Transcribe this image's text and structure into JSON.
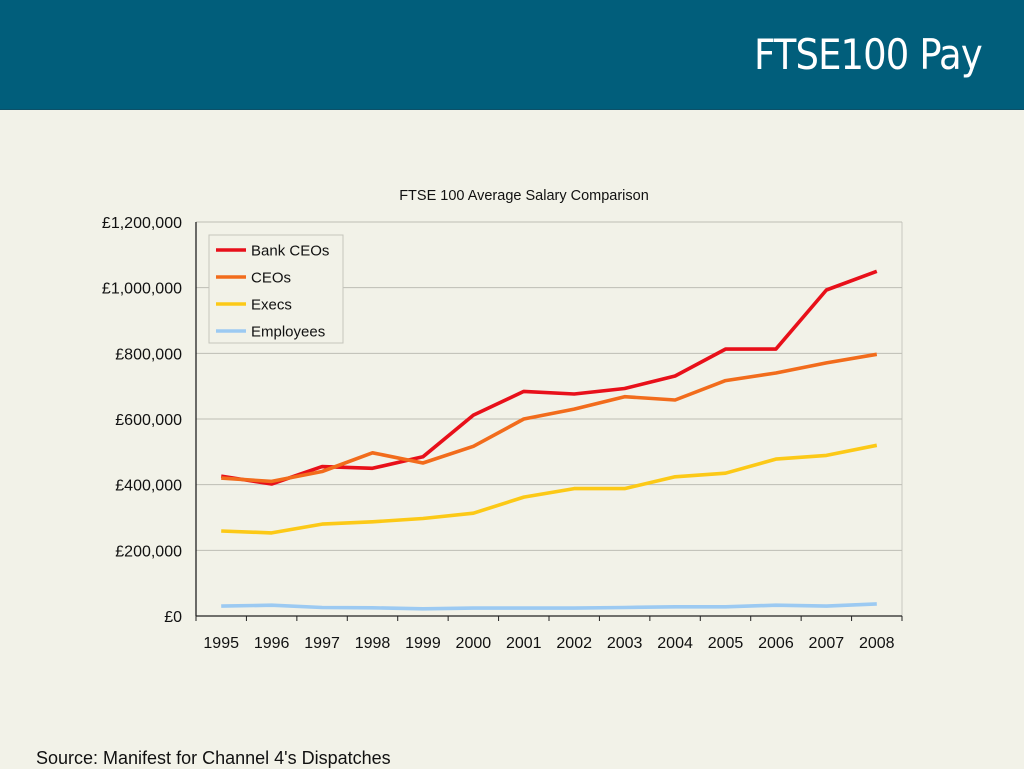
{
  "slide": {
    "title": "FTSE100 Pay",
    "source": "Source: Manifest for Channel 4's Dispatches",
    "colors": {
      "header_bg": "#015e7b",
      "page_bg": "#f2f2e8"
    }
  },
  "chart_data": {
    "type": "line",
    "title": "FTSE 100 Average Salary Comparison",
    "xlabel": "",
    "ylabel": "",
    "categories": [
      "1995",
      "1996",
      "1997",
      "1998",
      "1999",
      "2000",
      "2001",
      "2002",
      "2003",
      "2004",
      "2005",
      "2006",
      "2007",
      "2008"
    ],
    "ylim": [
      0,
      1200000
    ],
    "yticks": [
      0,
      200000,
      400000,
      600000,
      800000,
      1000000,
      1200000
    ],
    "ytick_labels": [
      "£0",
      "£200,000",
      "£400,000",
      "£600,000",
      "£800,000",
      "£1,000,000",
      "£1,200,000"
    ],
    "grid": true,
    "legend_position": "top-left",
    "series": [
      {
        "name": "Bank CEOs",
        "color": "#e8101a",
        "values": [
          426000,
          402000,
          455000,
          450000,
          485000,
          612000,
          684000,
          676000,
          693000,
          731000,
          813000,
          813000,
          993000,
          1050000
        ]
      },
      {
        "name": "CEOs",
        "color": "#f26c1c",
        "values": [
          420000,
          410000,
          440000,
          497000,
          466000,
          517000,
          600000,
          630000,
          668000,
          658000,
          717000,
          740000,
          771000,
          797000
        ]
      },
      {
        "name": "Execs",
        "color": "#fcc917",
        "values": [
          259000,
          253000,
          280000,
          287000,
          297000,
          313000,
          362000,
          388000,
          388000,
          424000,
          435000,
          478000,
          489000,
          520000
        ]
      },
      {
        "name": "Employees",
        "color": "#9ccaf2",
        "values": [
          30000,
          33000,
          26000,
          25000,
          22000,
          24000,
          24000,
          24000,
          26000,
          28000,
          28000,
          33000,
          30000,
          37000
        ]
      }
    ]
  }
}
